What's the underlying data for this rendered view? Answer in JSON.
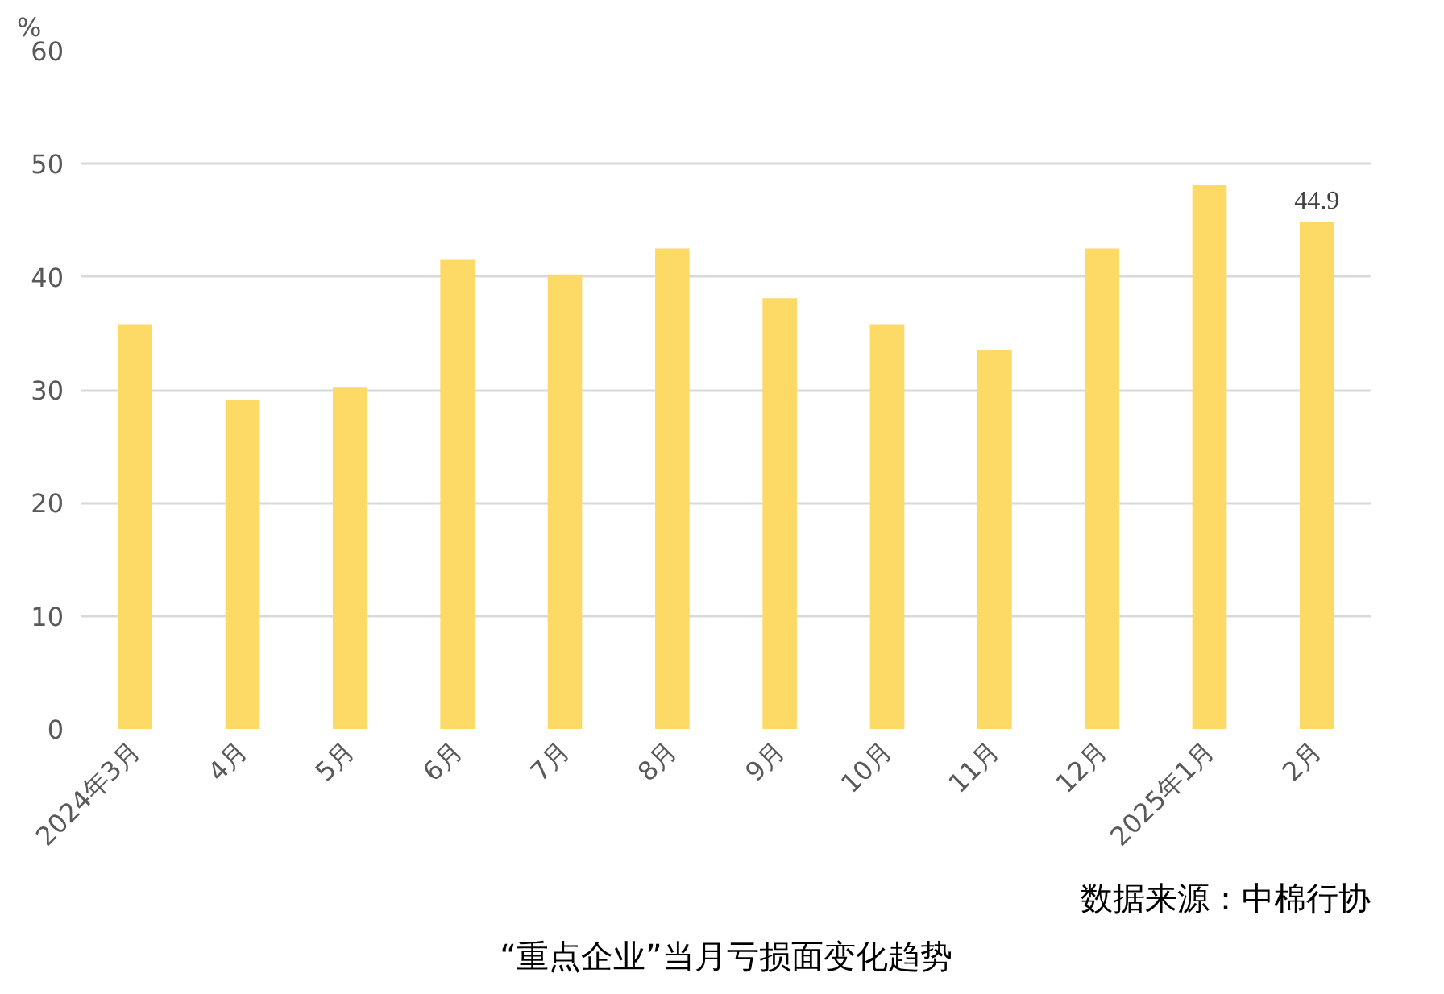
{
  "chart_data": {
    "type": "bar",
    "title": "“重点企业”当月亏损面变化趋势",
    "ylabel": "%",
    "categories": [
      "2024年3月",
      "4月",
      "5月",
      "6月",
      "7月",
      "8月",
      "9月",
      "10月",
      "11月",
      "12月",
      "2025年1月",
      "2月"
    ],
    "values": [
      35.8,
      29.1,
      30.2,
      41.5,
      40.2,
      42.5,
      38.1,
      35.8,
      33.5,
      42.5,
      48.1,
      44.9
    ],
    "value_labels": [
      null,
      null,
      null,
      null,
      null,
      null,
      null,
      null,
      null,
      null,
      null,
      "44.9"
    ],
    "color": "#fdd966",
    "ylim": [
      0,
      60
    ],
    "yticks": [
      0,
      10,
      20,
      30,
      40,
      50,
      60
    ],
    "grid": "y",
    "annotations": [
      "数据来源：中棉行协"
    ]
  }
}
